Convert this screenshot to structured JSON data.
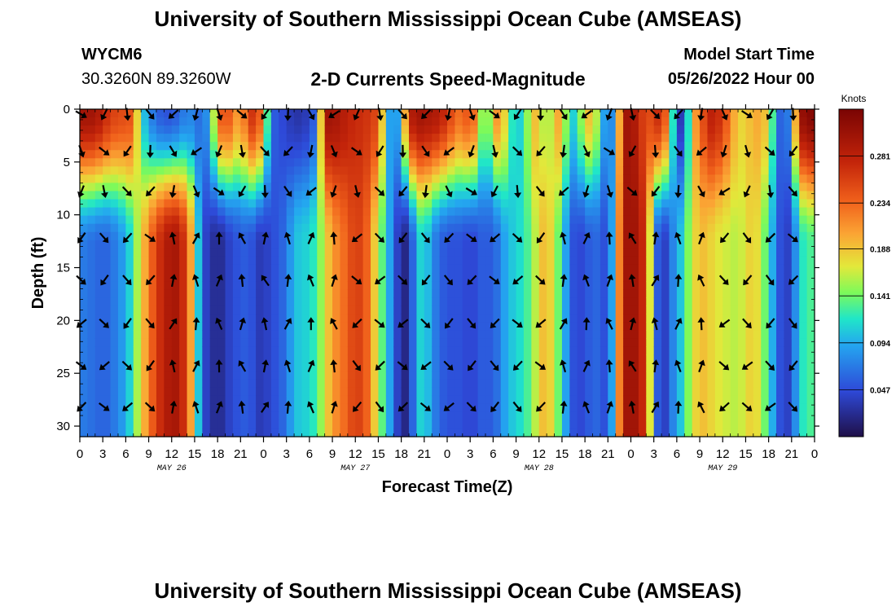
{
  "header": {
    "title": "University of Southern Mississippi Ocean Cube (AMSEAS)",
    "station_id": "WYCM6",
    "station_coords": "30.3260N  89.3260W",
    "subtitle": "2-D Currents Speed-Magnitude",
    "model_start_label": "Model Start Time",
    "model_start_value": "05/26/2022 Hour 00"
  },
  "footer": {
    "title": "University of Southern Mississippi Ocean Cube (AMSEAS)"
  },
  "colors": {
    "arrow": "#000000",
    "axis": "#000000",
    "background": "#ffffff"
  },
  "chart_data": {
    "type": "heatmap",
    "title": "2-D Currents Speed-Magnitude",
    "xlabel": "Forecast Time(Z)",
    "ylabel": "Depth (ft)",
    "x_ticks": [
      "0",
      "3",
      "6",
      "9",
      "12",
      "15",
      "18",
      "21",
      "0",
      "3",
      "6",
      "9",
      "12",
      "15",
      "18",
      "21",
      "0",
      "3",
      "6",
      "9",
      "12",
      "15",
      "18",
      "21",
      "0",
      "3",
      "6",
      "9",
      "12",
      "15",
      "18",
      "21",
      "0"
    ],
    "x_range_hours": [
      0,
      96
    ],
    "day_labels": [
      {
        "label": "MAY 26",
        "hour": 12
      },
      {
        "label": "MAY 27",
        "hour": 36
      },
      {
        "label": "MAY 28",
        "hour": 60
      },
      {
        "label": "MAY 29",
        "hour": 84
      }
    ],
    "y_ticks": [
      0,
      5,
      10,
      15,
      20,
      25,
      30
    ],
    "y_range_ft": [
      0,
      31
    ],
    "colorbar": {
      "unit": "Knots",
      "range": [
        0.0,
        0.328
      ],
      "ticks": [
        "0.281",
        "0.234",
        "0.188",
        "0.141",
        "0.094",
        "0.047"
      ],
      "tick_values": [
        0.281,
        0.234,
        0.188,
        0.141,
        0.094,
        0.047
      ]
    },
    "time_profile_hours": [
      0,
      1,
      2,
      3,
      4,
      5,
      6,
      7,
      8,
      9,
      10,
      11,
      12,
      13,
      14,
      15,
      16,
      17,
      18,
      19,
      20,
      21,
      22,
      23,
      24,
      25,
      26,
      27,
      28,
      29,
      30,
      31,
      32,
      33,
      34,
      35,
      36,
      37,
      38,
      39,
      40,
      41,
      42,
      43,
      44,
      45,
      46,
      47,
      48,
      49,
      50,
      51,
      52,
      53,
      54,
      55,
      56,
      57,
      58,
      59,
      60,
      61,
      62,
      63,
      64,
      65,
      66,
      67,
      68,
      69,
      70,
      71,
      72,
      73,
      74,
      75,
      76,
      77,
      78,
      79,
      80,
      81,
      82,
      83,
      84,
      85,
      86,
      87,
      88,
      89,
      90,
      91,
      92,
      93,
      94,
      95,
      96
    ],
    "surface_speed_knots": [
      0.3,
      0.3,
      0.3,
      0.28,
      0.26,
      0.25,
      0.25,
      0.24,
      0.12,
      0.08,
      0.06,
      0.05,
      0.05,
      0.06,
      0.08,
      0.07,
      0.06,
      0.1,
      0.22,
      0.26,
      0.22,
      0.2,
      0.25,
      0.28,
      0.2,
      0.06,
      0.05,
      0.04,
      0.03,
      0.03,
      0.04,
      0.07,
      0.3,
      0.3,
      0.29,
      0.28,
      0.27,
      0.27,
      0.26,
      0.25,
      0.12,
      0.06,
      0.12,
      0.28,
      0.3,
      0.3,
      0.29,
      0.29,
      0.26,
      0.24,
      0.22,
      0.26,
      0.2,
      0.1,
      0.2,
      0.22,
      0.14,
      0.1,
      0.12,
      0.18,
      0.2,
      0.12,
      0.2,
      0.2,
      0.1,
      0.12,
      0.18,
      0.2,
      0.12,
      0.06,
      0.1,
      0.3,
      0.3,
      0.28,
      0.24,
      0.26,
      0.28,
      0.2,
      0.04,
      0.03,
      0.2,
      0.22,
      0.28,
      0.28,
      0.26,
      0.22,
      0.18,
      0.18,
      0.2,
      0.2,
      0.18,
      0.08,
      0.04,
      0.1,
      0.3,
      0.32,
      0.32
    ],
    "deep_speed_knots": [
      0.07,
      0.07,
      0.06,
      0.06,
      0.06,
      0.08,
      0.09,
      0.13,
      0.18,
      0.22,
      0.26,
      0.28,
      0.3,
      0.29,
      0.25,
      0.16,
      0.05,
      0.03,
      0.02,
      0.03,
      0.05,
      0.05,
      0.06,
      0.04,
      0.03,
      0.05,
      0.05,
      0.07,
      0.1,
      0.11,
      0.11,
      0.13,
      0.17,
      0.21,
      0.22,
      0.24,
      0.26,
      0.25,
      0.22,
      0.15,
      0.12,
      0.06,
      0.02,
      0.02,
      0.1,
      0.12,
      0.08,
      0.06,
      0.05,
      0.05,
      0.05,
      0.04,
      0.05,
      0.06,
      0.05,
      0.08,
      0.1,
      0.11,
      0.12,
      0.14,
      0.18,
      0.2,
      0.16,
      0.12,
      0.06,
      0.04,
      0.05,
      0.06,
      0.06,
      0.04,
      0.14,
      0.3,
      0.3,
      0.3,
      0.25,
      0.09,
      0.02,
      0.06,
      0.09,
      0.12,
      0.17,
      0.19,
      0.19,
      0.17,
      0.17,
      0.16,
      0.16,
      0.17,
      0.19,
      0.16,
      0.12,
      0.07,
      0.03,
      0.05,
      0.11,
      0.13,
      0.13
    ],
    "arrow_rows_depth_ft": [
      0.5,
      4.0,
      7.8,
      12.2,
      16.2,
      20.3,
      24.3,
      28.2
    ],
    "arrow_cols_hour_step": 3,
    "arrow_direction_note": "Arrows indicate current direction at each time/depth sample; predominantly southward (down-left/down-right), with northward flows around hours 12-33 and 61-80 at depth."
  }
}
